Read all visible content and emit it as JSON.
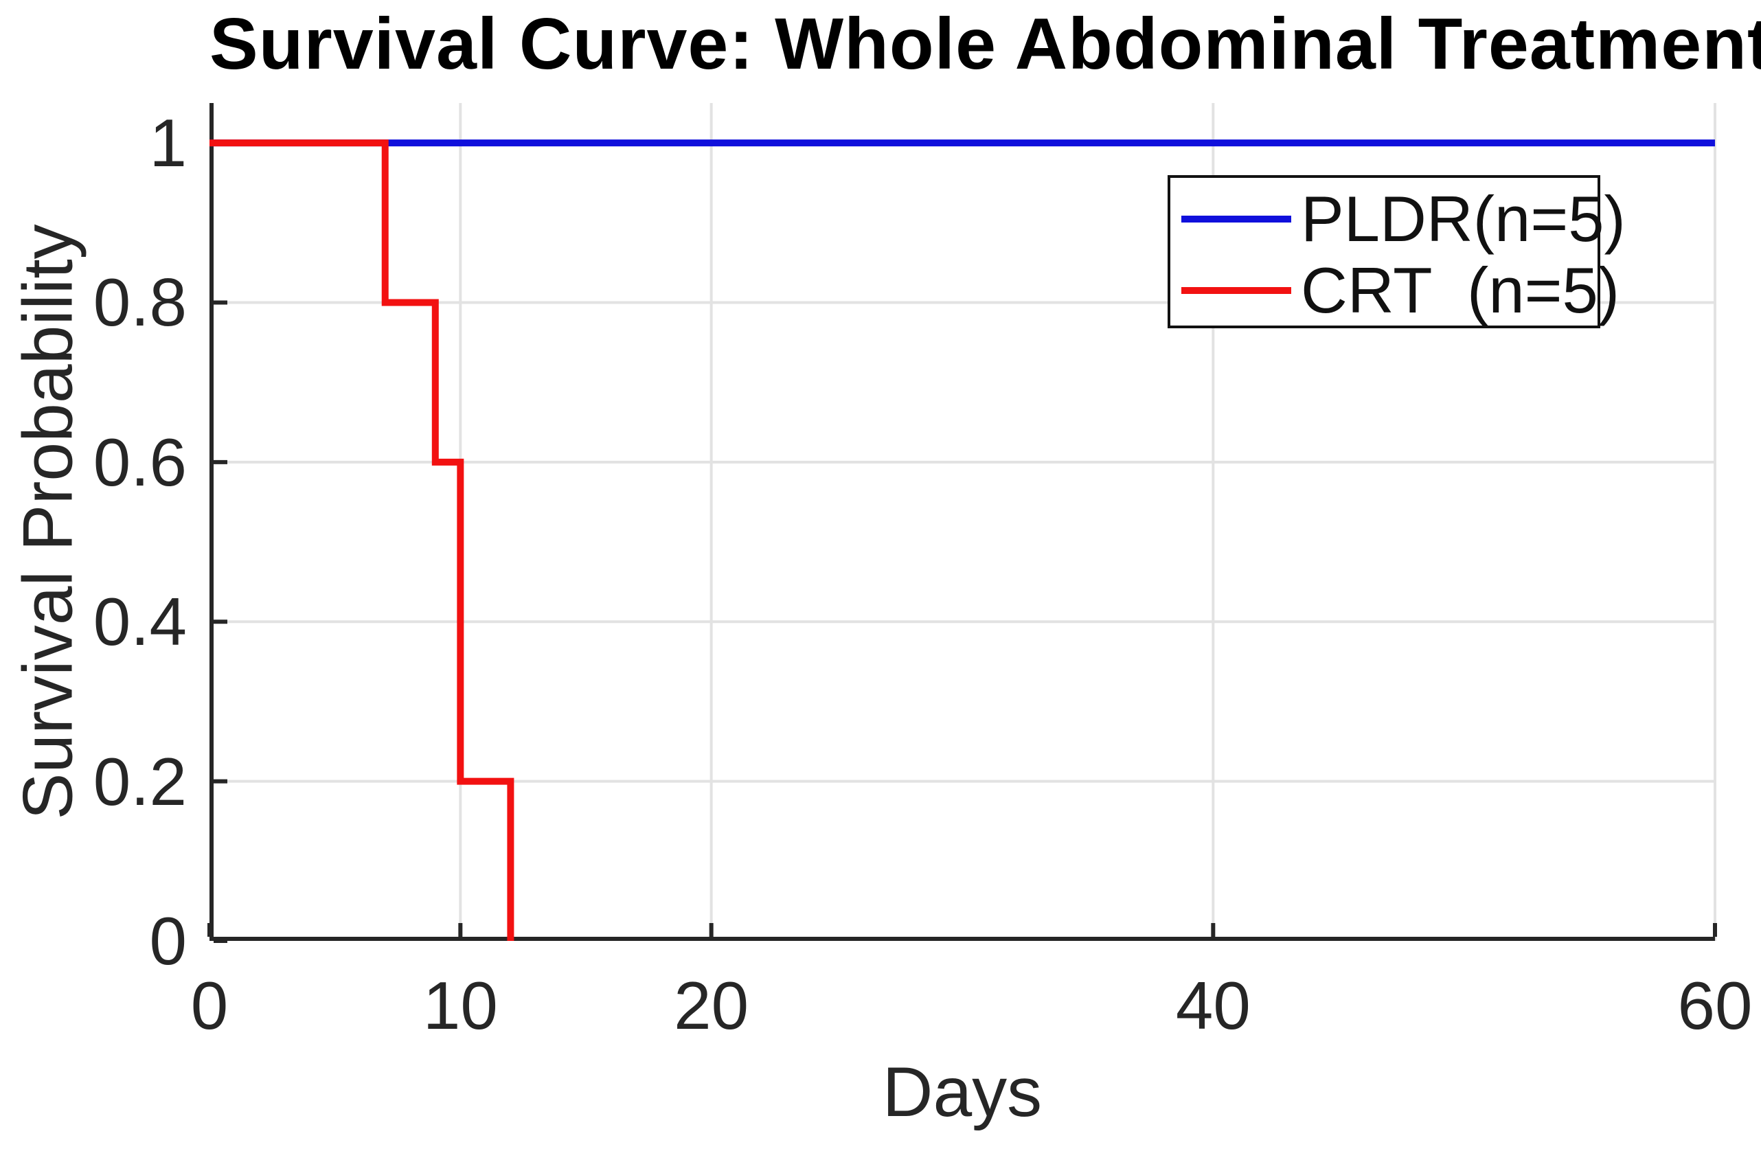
{
  "theme": {
    "background": "#ffffff",
    "axis_color": "#262626",
    "grid_color": "#e2e2e2",
    "title_color": "#000000",
    "legend_border_color": "#111111"
  },
  "chart_data": {
    "type": "line",
    "subtype": "kaplan-meier-step-survival",
    "title": "Survival Curve: Whole Abdominal Treatment",
    "xlabel": "Days",
    "ylabel": "Survival Probability",
    "xlim": [
      0,
      60
    ],
    "ylim": [
      0,
      1.05
    ],
    "xticks": [
      0,
      10,
      20,
      40,
      60
    ],
    "yticks": [
      0,
      0.2,
      0.4,
      0.6,
      0.8,
      1
    ],
    "grid": true,
    "legend_position": "upper-right-inside",
    "series": [
      {
        "name": "PLDR(n=5)",
        "color": "#1010dc",
        "line_width": 10,
        "start_prob": 1,
        "steps": [
          [
            60,
            1
          ]
        ],
        "description": "flat at survival probability 1.0 from day 0 to day 60"
      },
      {
        "name": "CRT  (n=5)",
        "color": "#f21111",
        "line_width": 10,
        "start_prob": 1,
        "steps": [
          [
            7,
            0.8
          ],
          [
            9,
            0.6
          ],
          [
            10,
            0.2
          ],
          [
            12,
            0
          ]
        ],
        "description": "drops to 0.8 at day 7, 0.6 at day 9, 0.2 at day 10, 0 at day 12"
      }
    ]
  }
}
